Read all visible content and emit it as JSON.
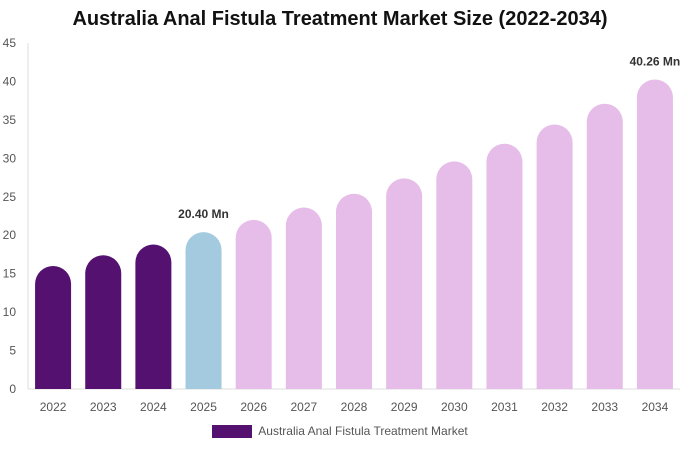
{
  "chart_data": {
    "type": "bar",
    "title": "Australia Anal Fistula Treatment Market Size (2022-2034)",
    "xlabel": "",
    "ylabel": "",
    "categories": [
      "2022",
      "2023",
      "2024",
      "2025",
      "2026",
      "2027",
      "2028",
      "2029",
      "2030",
      "2031",
      "2032",
      "2033",
      "2034"
    ],
    "series": [
      {
        "name": "Australia Anal Fistula Treatment Market",
        "values": [
          16.0,
          17.4,
          18.8,
          20.4,
          22.0,
          23.6,
          25.4,
          27.4,
          29.6,
          31.9,
          34.4,
          37.1,
          40.26
        ]
      }
    ],
    "ylim": [
      0,
      45
    ],
    "yticks": [
      0,
      5,
      10,
      15,
      20,
      25,
      30,
      35,
      40,
      45
    ],
    "bar_colors": [
      "#541170",
      "#541170",
      "#541170",
      "#a3cadf",
      "#e6bce8",
      "#e6bce8",
      "#e6bce8",
      "#e6bce8",
      "#e6bce8",
      "#e6bce8",
      "#e6bce8",
      "#e6bce8",
      "#e6bce8"
    ],
    "annotations": [
      {
        "category": "2025",
        "text": "20.40 Mn"
      },
      {
        "category": "2034",
        "text": "40.26 Mn"
      }
    ],
    "legend_color": "#541170",
    "grid": false,
    "legend_position": "bottom-center"
  }
}
